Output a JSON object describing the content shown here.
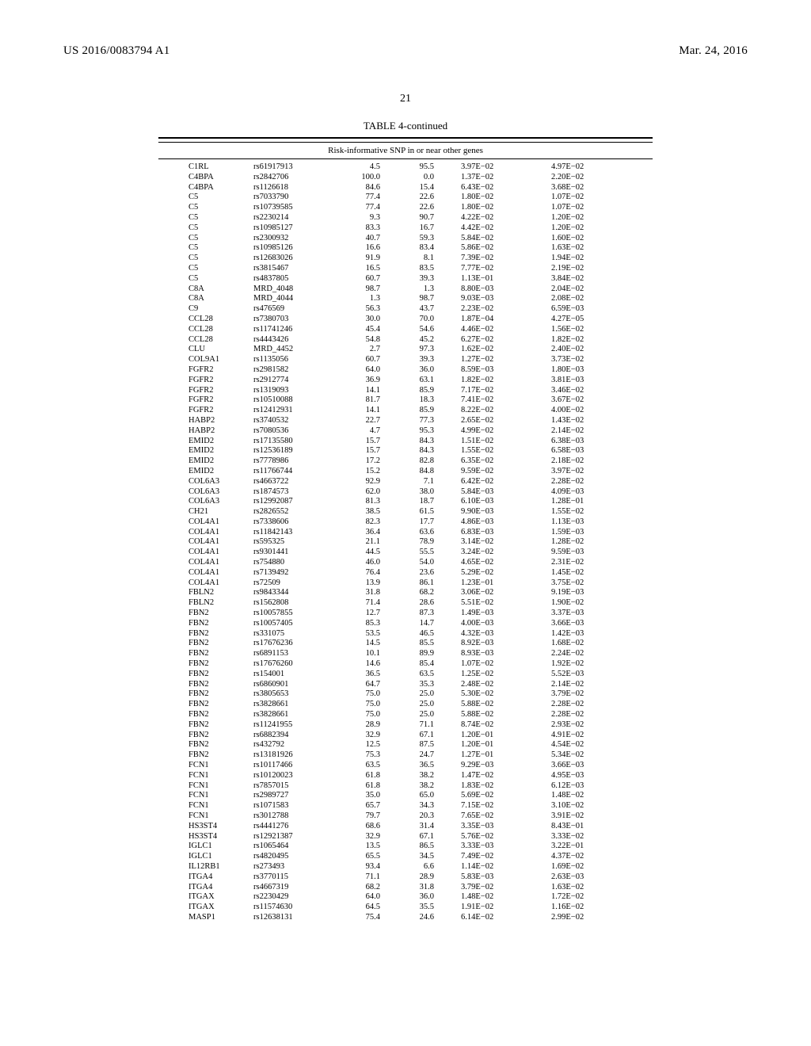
{
  "header": {
    "left": "US 2016/0083794 A1",
    "right": "Mar. 24, 2016"
  },
  "page_number": "21",
  "table": {
    "caption": "TABLE 4-continued",
    "subcaption": "Risk-informative SNP in or near other genes",
    "rows": [
      [
        "C1RL",
        "rs61917913",
        "4.5",
        "95.5",
        "3.97E−02",
        "4.97E−02"
      ],
      [
        "C4BPA",
        "rs2842706",
        "100.0",
        "0.0",
        "1.37E−02",
        "2.20E−02"
      ],
      [
        "C4BPA",
        "rs1126618",
        "84.6",
        "15.4",
        "6.43E−02",
        "3.68E−02"
      ],
      [
        "C5",
        "rs7033790",
        "77.4",
        "22.6",
        "1.80E−02",
        "1.07E−02"
      ],
      [
        "C5",
        "rs10739585",
        "77.4",
        "22.6",
        "1.80E−02",
        "1.07E−02"
      ],
      [
        "C5",
        "rs2230214",
        "9.3",
        "90.7",
        "4.22E−02",
        "1.20E−02"
      ],
      [
        "C5",
        "rs10985127",
        "83.3",
        "16.7",
        "4.42E−02",
        "1.20E−02"
      ],
      [
        "C5",
        "rs2300932",
        "40.7",
        "59.3",
        "5.84E−02",
        "1.60E−02"
      ],
      [
        "C5",
        "rs10985126",
        "16.6",
        "83.4",
        "5.86E−02",
        "1.63E−02"
      ],
      [
        "C5",
        "rs12683026",
        "91.9",
        "8.1",
        "7.39E−02",
        "1.94E−02"
      ],
      [
        "C5",
        "rs3815467",
        "16.5",
        "83.5",
        "7.77E−02",
        "2.19E−02"
      ],
      [
        "C5",
        "rs4837805",
        "60.7",
        "39.3",
        "1.13E−01",
        "3.84E−02"
      ],
      [
        "C8A",
        "MRD_4048",
        "98.7",
        "1.3",
        "8.80E−03",
        "2.04E−02"
      ],
      [
        "C8A",
        "MRD_4044",
        "1.3",
        "98.7",
        "9.03E−03",
        "2.08E−02"
      ],
      [
        "C9",
        "rs476569",
        "56.3",
        "43.7",
        "2.23E−02",
        "6.59E−03"
      ],
      [
        "CCL28",
        "rs7380703",
        "30.0",
        "70.0",
        "1.87E−04",
        "4.27E−05"
      ],
      [
        "CCL28",
        "rs11741246",
        "45.4",
        "54.6",
        "4.46E−02",
        "1.56E−02"
      ],
      [
        "CCL28",
        "rs4443426",
        "54.8",
        "45.2",
        "6.27E−02",
        "1.82E−02"
      ],
      [
        "CLU",
        "MRD_4452",
        "2.7",
        "97.3",
        "1.62E−02",
        "2.40E−02"
      ],
      [
        "COL9A1",
        "rs1135056",
        "60.7",
        "39.3",
        "1.27E−02",
        "3.73E−02"
      ],
      [
        "FGFR2",
        "rs2981582",
        "64.0",
        "36.0",
        "8.59E−03",
        "1.80E−03"
      ],
      [
        "FGFR2",
        "rs2912774",
        "36.9",
        "63.1",
        "1.82E−02",
        "3.81E−03"
      ],
      [
        "FGFR2",
        "rs1319093",
        "14.1",
        "85.9",
        "7.17E−02",
        "3.46E−02"
      ],
      [
        "FGFR2",
        "rs10510088",
        "81.7",
        "18.3",
        "7.41E−02",
        "3.67E−02"
      ],
      [
        "FGFR2",
        "rs12412931",
        "14.1",
        "85.9",
        "8.22E−02",
        "4.00E−02"
      ],
      [
        "HABP2",
        "rs3740532",
        "22.7",
        "77.3",
        "2.65E−02",
        "1.43E−02"
      ],
      [
        "HABP2",
        "rs7080536",
        "4.7",
        "95.3",
        "4.99E−02",
        "2.14E−02"
      ],
      [
        "EMID2",
        "rs17135580",
        "15.7",
        "84.3",
        "1.51E−02",
        "6.38E−03"
      ],
      [
        "EMID2",
        "rs12536189",
        "15.7",
        "84.3",
        "1.55E−02",
        "6.58E−03"
      ],
      [
        "EMID2",
        "rs7778986",
        "17.2",
        "82.8",
        "6.35E−02",
        "2.18E−02"
      ],
      [
        "EMID2",
        "rs11766744",
        "15.2",
        "84.8",
        "9.59E−02",
        "3.97E−02"
      ],
      [
        "COL6A3",
        "rs4663722",
        "92.9",
        "7.1",
        "6.42E−02",
        "2.28E−02"
      ],
      [
        "COL6A3",
        "rs1874573",
        "62.0",
        "38.0",
        "5.84E−03",
        "4.09E−03"
      ],
      [
        "COL6A3",
        "rs12992087",
        "81.3",
        "18.7",
        "6.10E−03",
        "1.28E−01"
      ],
      [
        "CH21",
        "rs2826552",
        "38.5",
        "61.5",
        "9.90E−03",
        "1.55E−02"
      ],
      [
        "COL4A1",
        "rs7338606",
        "82.3",
        "17.7",
        "4.86E−03",
        "1.13E−03"
      ],
      [
        "COL4A1",
        "rs11842143",
        "36.4",
        "63.6",
        "6.83E−03",
        "1.59E−03"
      ],
      [
        "COL4A1",
        "rs595325",
        "21.1",
        "78.9",
        "3.14E−02",
        "1.28E−02"
      ],
      [
        "COL4A1",
        "rs9301441",
        "44.5",
        "55.5",
        "3.24E−02",
        "9.59E−03"
      ],
      [
        "COL4A1",
        "rs754880",
        "46.0",
        "54.0",
        "4.65E−02",
        "2.31E−02"
      ],
      [
        "COL4A1",
        "rs7139492",
        "76.4",
        "23.6",
        "5.29E−02",
        "1.45E−02"
      ],
      [
        "COL4A1",
        "rs72509",
        "13.9",
        "86.1",
        "1.23E−01",
        "3.75E−02"
      ],
      [
        "FBLN2",
        "rs9843344",
        "31.8",
        "68.2",
        "3.06E−02",
        "9.19E−03"
      ],
      [
        "FBLN2",
        "rs1562808",
        "71.4",
        "28.6",
        "5.51E−02",
        "1.90E−02"
      ],
      [
        "FBN2",
        "rs10057855",
        "12.7",
        "87.3",
        "1.49E−03",
        "3.37E−03"
      ],
      [
        "FBN2",
        "rs10057405",
        "85.3",
        "14.7",
        "4.00E−03",
        "3.66E−03"
      ],
      [
        "FBN2",
        "rs331075",
        "53.5",
        "46.5",
        "4.32E−03",
        "1.42E−03"
      ],
      [
        "FBN2",
        "rs17676236",
        "14.5",
        "85.5",
        "8.92E−03",
        "1.68E−02"
      ],
      [
        "FBN2",
        "rs6891153",
        "10.1",
        "89.9",
        "8.93E−03",
        "2.24E−02"
      ],
      [
        "FBN2",
        "rs17676260",
        "14.6",
        "85.4",
        "1.07E−02",
        "1.92E−02"
      ],
      [
        "FBN2",
        "rs154001",
        "36.5",
        "63.5",
        "1.25E−02",
        "5.52E−03"
      ],
      [
        "FBN2",
        "rs6860901",
        "64.7",
        "35.3",
        "2.48E−02",
        "2.14E−02"
      ],
      [
        "FBN2",
        "rs3805653",
        "75.0",
        "25.0",
        "5.30E−02",
        "3.79E−02"
      ],
      [
        "FBN2",
        "rs3828661",
        "75.0",
        "25.0",
        "5.88E−02",
        "2.28E−02"
      ],
      [
        "FBN2",
        "rs3828661",
        "75.0",
        "25.0",
        "5.88E−02",
        "2.28E−02"
      ],
      [
        "FBN2",
        "rs11241955",
        "28.9",
        "71.1",
        "8.74E−02",
        "2.93E−02"
      ],
      [
        "FBN2",
        "rs6882394",
        "32.9",
        "67.1",
        "1.20E−01",
        "4.91E−02"
      ],
      [
        "FBN2",
        "rs432792",
        "12.5",
        "87.5",
        "1.20E−01",
        "4.54E−02"
      ],
      [
        "FBN2",
        "rs13181926",
        "75.3",
        "24.7",
        "1.27E−01",
        "5.34E−02"
      ],
      [
        "FCN1",
        "rs10117466",
        "63.5",
        "36.5",
        "9.29E−03",
        "3.66E−03"
      ],
      [
        "FCN1",
        "rs10120023",
        "61.8",
        "38.2",
        "1.47E−02",
        "4.95E−03"
      ],
      [
        "FCN1",
        "rs7857015",
        "61.8",
        "38.2",
        "1.83E−02",
        "6.12E−03"
      ],
      [
        "FCN1",
        "rs2989727",
        "35.0",
        "65.0",
        "5.69E−02",
        "1.48E−02"
      ],
      [
        "FCN1",
        "rs1071583",
        "65.7",
        "34.3",
        "7.15E−02",
        "3.10E−02"
      ],
      [
        "FCN1",
        "rs3012788",
        "79.7",
        "20.3",
        "7.65E−02",
        "3.91E−02"
      ],
      [
        "HS3ST4",
        "rs4441276",
        "68.6",
        "31.4",
        "3.35E−03",
        "8.43E−01"
      ],
      [
        "HS3ST4",
        "rs12921387",
        "32.9",
        "67.1",
        "5.76E−02",
        "3.33E−02"
      ],
      [
        "IGLC1",
        "rs1065464",
        "13.5",
        "86.5",
        "3.33E−03",
        "3.22E−01"
      ],
      [
        "IGLC1",
        "rs4820495",
        "65.5",
        "34.5",
        "7.49E−02",
        "4.37E−02"
      ],
      [
        "IL12RB1",
        "rs273493",
        "93.4",
        "6.6",
        "1.14E−02",
        "1.69E−02"
      ],
      [
        "ITGA4",
        "rs3770115",
        "71.1",
        "28.9",
        "5.83E−03",
        "2.63E−03"
      ],
      [
        "ITGA4",
        "rs4667319",
        "68.2",
        "31.8",
        "3.79E−02",
        "1.63E−02"
      ],
      [
        "ITGAX",
        "rs2230429",
        "64.0",
        "36.0",
        "1.48E−02",
        "1.72E−02"
      ],
      [
        "ITGAX",
        "rs11574630",
        "64.5",
        "35.5",
        "1.91E−02",
        "1.16E−02"
      ],
      [
        "MASP1",
        "rs12638131",
        "75.4",
        "24.6",
        "6.14E−02",
        "2.99E−02"
      ]
    ]
  }
}
